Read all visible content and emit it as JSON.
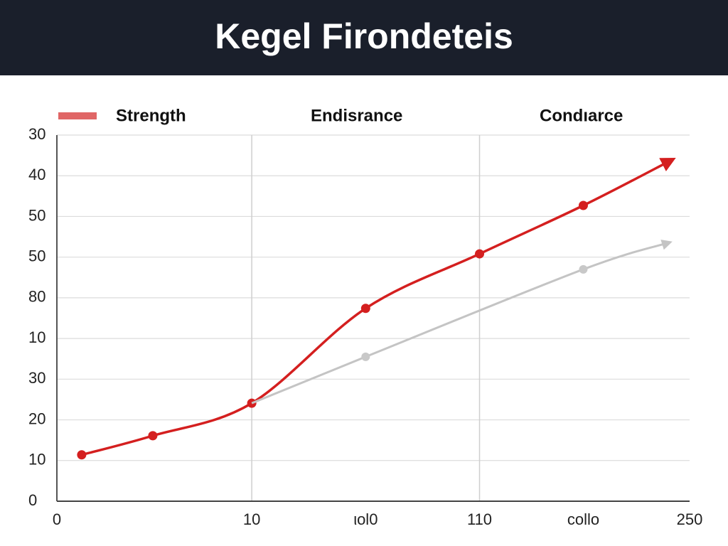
{
  "chart_data": {
    "type": "line",
    "title": "Kegel Firondeteis",
    "xlim": [
      0,
      250
    ],
    "xticks": [
      0,
      {
        "value": 77,
        "label": "10"
      },
      {
        "value": 122,
        "label": "ιol0"
      },
      {
        "value": 167,
        "label": "110"
      },
      {
        "value": 208,
        "label": "collo"
      },
      250
    ],
    "ylim": [
      0,
      90
    ],
    "yticks": [
      0,
      10,
      20,
      30,
      {
        "value": 40,
        "label": "10"
      },
      {
        "value": 50,
        "label": "80"
      },
      {
        "value": 60,
        "label": "50"
      },
      {
        "value": 70,
        "label": "50"
      },
      {
        "value": 80,
        "label": "40"
      },
      {
        "value": 90,
        "label": "30"
      }
    ],
    "grid": true,
    "xgrid_ticks": [
      1,
      3
    ],
    "legend_swatches": [
      true,
      false,
      false
    ],
    "series": [
      {
        "name": "Strength",
        "color": "#d41f1f",
        "swatch_color": "#e06666",
        "x": [
          9.8,
          37.9,
          77,
          122,
          167,
          208,
          243
        ],
        "values": [
          11.4,
          16.1,
          24.1,
          47.4,
          60.8,
          72.7,
          83.9
        ]
      },
      {
        "name": "Endisrance",
        "color": "#c4c4c4",
        "x": [
          77,
          122,
          208,
          242
        ],
        "values": [
          24.1,
          35.5,
          57,
          63.6
        ]
      },
      {
        "name": "Condıarce",
        "color": "#888888",
        "x": [],
        "values": []
      }
    ]
  }
}
